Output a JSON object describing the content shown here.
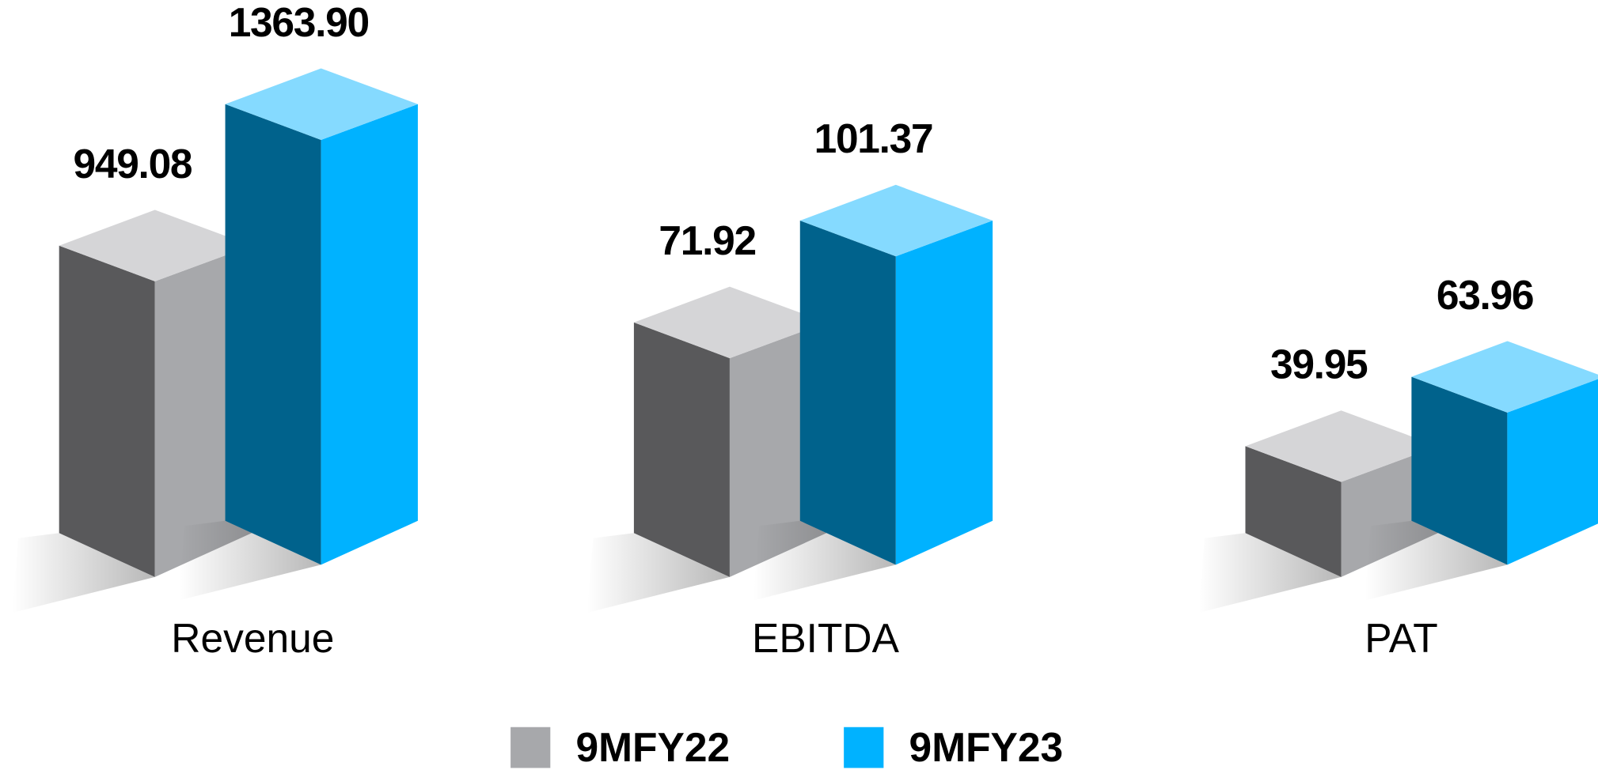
{
  "chart_data": {
    "type": "bar",
    "categories": [
      "Revenue",
      "EBITDA",
      "PAT"
    ],
    "series": [
      {
        "name": "9MFY22",
        "color": "#a7a8ab",
        "values": [
          949.08,
          71.92,
          39.95
        ],
        "value_labels": [
          "949.08",
          "71.92",
          "39.95"
        ]
      },
      {
        "name": "9MFY23",
        "color": "#00b2ff",
        "values": [
          1363.9,
          101.37,
          63.96
        ],
        "value_labels": [
          "1363.90",
          "101.37",
          "63.96"
        ]
      }
    ],
    "legend": "bottom"
  }
}
